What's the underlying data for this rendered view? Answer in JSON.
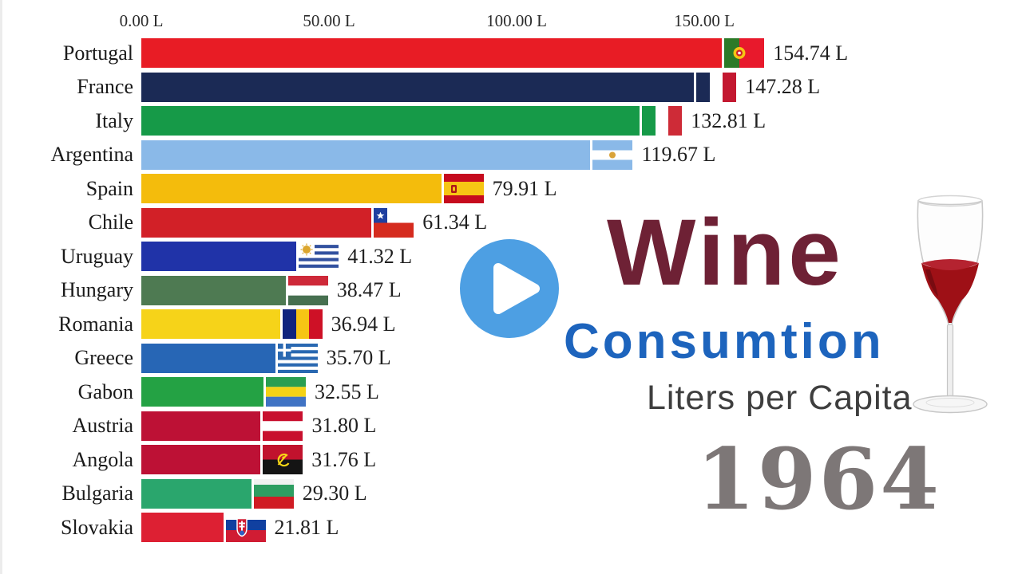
{
  "chart_data": {
    "type": "bar",
    "orientation": "horizontal",
    "title": "Wine Consumtion",
    "subtitle": "Liters per Capita",
    "year": "1964",
    "unit": "L",
    "xlim": [
      0,
      175
    ],
    "grid": false,
    "axis_ticks": [
      {
        "value": 0,
        "label": "0.00 L"
      },
      {
        "value": 50,
        "label": "50.00 L"
      },
      {
        "value": 100,
        "label": "100.00 L"
      },
      {
        "value": 150,
        "label": "150.00 L"
      }
    ],
    "bars": [
      {
        "country": "Portugal",
        "value": 154.74,
        "label": "154.74 L",
        "color": "#e81c25",
        "flag": "portugal"
      },
      {
        "country": "France",
        "value": 147.28,
        "label": "147.28 L",
        "color": "#1b2a55",
        "flag": "france"
      },
      {
        "country": "Italy",
        "value": 132.81,
        "label": "132.81 L",
        "color": "#169a48",
        "flag": "italy"
      },
      {
        "country": "Argentina",
        "value": 119.67,
        "label": "119.67 L",
        "color": "#8ab9e8",
        "flag": "argentina"
      },
      {
        "country": "Spain",
        "value": 79.91,
        "label": "79.91 L",
        "color": "#f4bc0c",
        "flag": "spain"
      },
      {
        "country": "Chile",
        "value": 61.34,
        "label": "61.34 L",
        "color": "#d22027",
        "flag": "chile"
      },
      {
        "country": "Uruguay",
        "value": 41.32,
        "label": "41.32 L",
        "color": "#2033a8",
        "flag": "uruguay"
      },
      {
        "country": "Hungary",
        "value": 38.47,
        "label": "38.47 L",
        "color": "#4e7a52",
        "flag": "hungary"
      },
      {
        "country": "Romania",
        "value": 36.94,
        "label": "36.94 L",
        "color": "#f6d319",
        "flag": "romania"
      },
      {
        "country": "Greece",
        "value": 35.7,
        "label": "35.70 L",
        "color": "#2766b5",
        "flag": "greece"
      },
      {
        "country": "Gabon",
        "value": 32.55,
        "label": "32.55 L",
        "color": "#24a244",
        "flag": "gabon"
      },
      {
        "country": "Austria",
        "value": 31.8,
        "label": "31.80 L",
        "color": "#bd1135",
        "flag": "austria"
      },
      {
        "country": "Angola",
        "value": 31.76,
        "label": "31.76 L",
        "color": "#bd1135",
        "flag": "angola"
      },
      {
        "country": "Bulgaria",
        "value": 29.3,
        "label": "29.30 L",
        "color": "#2aa66d",
        "flag": "bulgaria"
      },
      {
        "country": "Slovakia",
        "value": 21.81,
        "label": "21.81 L",
        "color": "#dd2033",
        "flag": "slovakia"
      }
    ]
  },
  "overlay": {
    "title_line1": "Wine",
    "title_line2": "Consumtion",
    "title_line3": "Liters per Capita",
    "year": "1964",
    "colors": {
      "title1": "#6e2135",
      "title2": "#1d64bd",
      "title3": "#3e3e3e",
      "year": "#7d7777",
      "play_button": "#4d9fe3",
      "play_ring": "#ffffff",
      "wine": "#9e1016"
    }
  }
}
